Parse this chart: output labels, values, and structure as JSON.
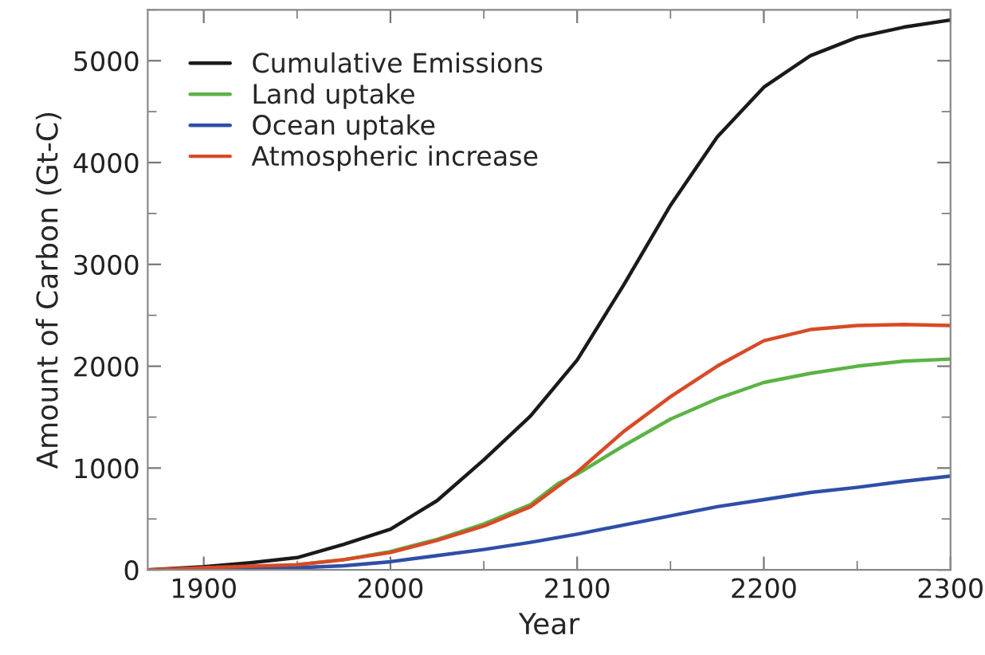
{
  "chart_data": {
    "type": "line",
    "xlabel": "Year",
    "ylabel": "Amount of Carbon (Gt-C)",
    "xlim": [
      1870,
      2300
    ],
    "xticks": [
      1900,
      2000,
      2100,
      2200,
      2300
    ],
    "ylim": [
      0,
      5500
    ],
    "yticks": [
      0,
      1000,
      2000,
      3000,
      4000,
      5000
    ],
    "grid": false,
    "legend": "top left",
    "marker": "none",
    "line_style": "solid",
    "series": [
      {
        "name": "Cumulative Emissions",
        "color": "#1a1a1a",
        "x": [
          1870,
          1900,
          1925,
          1950,
          1975,
          2000,
          2025,
          2050,
          2075,
          2100,
          2125,
          2150,
          2175,
          2200,
          2225,
          2250,
          2275,
          2300
        ],
        "values": [
          0,
          30,
          70,
          120,
          250,
          400,
          680,
          1080,
          1510,
          2060,
          2800,
          3580,
          4250,
          4740,
          5050,
          5230,
          5330,
          5400
        ]
      },
      {
        "name": "Land uptake",
        "color": "#5cb345",
        "x": [
          1950,
          1975,
          2000,
          2025,
          2050,
          2075,
          2090,
          2100,
          2125,
          2150,
          2175,
          2200,
          2225,
          2250,
          2275,
          2300
        ],
        "values": [
          50,
          100,
          180,
          300,
          450,
          640,
          850,
          940,
          1220,
          1480,
          1680,
          1840,
          1930,
          2000,
          2050,
          2070
        ]
      },
      {
        "name": "Ocean uptake",
        "color": "#2e4fa8",
        "x": [
          1870,
          1900,
          1950,
          1975,
          2000,
          2025,
          2050,
          2075,
          2100,
          2125,
          2150,
          2175,
          2200,
          2225,
          2250,
          2275,
          2300
        ],
        "values": [
          0,
          0,
          20,
          40,
          80,
          140,
          200,
          270,
          350,
          440,
          530,
          620,
          690,
          760,
          810,
          870,
          920
        ]
      },
      {
        "name": "Atmospheric increase",
        "color": "#d94a26",
        "x": [
          1870,
          1900,
          1950,
          1975,
          2000,
          2025,
          2050,
          2075,
          2100,
          2125,
          2150,
          2165,
          2175,
          2200,
          2225,
          2250,
          2275,
          2300
        ],
        "values": [
          0,
          20,
          50,
          100,
          170,
          290,
          430,
          620,
          960,
          1360,
          1700,
          1880,
          2000,
          2250,
          2360,
          2400,
          2410,
          2400
        ]
      }
    ]
  }
}
